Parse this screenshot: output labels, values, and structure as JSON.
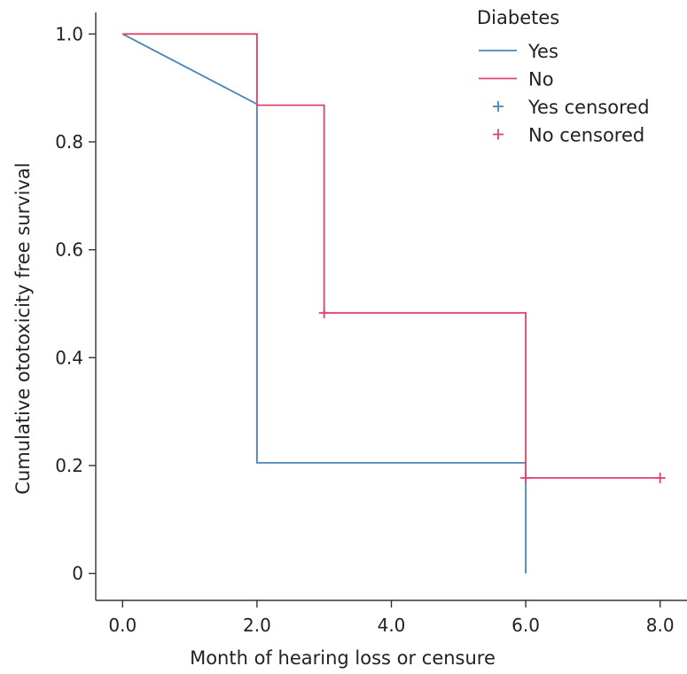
{
  "chart_data": {
    "type": "line",
    "subtype": "kaplan-meier-step",
    "xlabel": "Month of hearing loss or censure",
    "ylabel": "Cumulative ototoxicity free survival",
    "x_ticks": [
      0,
      2,
      4,
      6,
      8
    ],
    "x_tick_labels": [
      "0.0",
      "2.0",
      "4.0",
      "6.0",
      "8.0"
    ],
    "y_ticks": [
      0,
      0.2,
      0.4,
      0.6,
      0.8,
      1.0
    ],
    "y_tick_labels": [
      "0",
      "0.2",
      "0.4",
      "0.6",
      "0.8",
      "1.0"
    ],
    "xlim": [
      -0.4,
      8.4
    ],
    "ylim": [
      -0.05,
      1.04
    ],
    "grid": false,
    "legend": {
      "title": "Diabetes",
      "position": "top-right",
      "entries": [
        {
          "label": "Yes",
          "kind": "line",
          "series": "Yes"
        },
        {
          "label": "No",
          "kind": "line",
          "series": "No"
        },
        {
          "label": "Yes censored",
          "kind": "censor",
          "series": "Yes"
        },
        {
          "label": "No censored",
          "kind": "censor",
          "series": "No"
        }
      ]
    },
    "series": [
      {
        "name": "Yes",
        "color": "#4a86b9",
        "steps": [
          {
            "x": 0,
            "y": 1.0
          },
          {
            "x": 2,
            "y": 0.87
          },
          {
            "x": 2,
            "y": 0.205
          },
          {
            "x": 6,
            "y": 0.205
          },
          {
            "x": 6,
            "y": 0.0
          }
        ],
        "censored": []
      },
      {
        "name": "No",
        "color": "#e0436a",
        "steps": [
          {
            "x": 0,
            "y": 1.0
          },
          {
            "x": 2,
            "y": 1.0
          },
          {
            "x": 2,
            "y": 0.868
          },
          {
            "x": 3,
            "y": 0.868
          },
          {
            "x": 3,
            "y": 0.483
          },
          {
            "x": 6,
            "y": 0.483
          },
          {
            "x": 6,
            "y": 0.177
          },
          {
            "x": 8,
            "y": 0.177
          }
        ],
        "censored": [
          {
            "x": 3,
            "y": 0.483
          },
          {
            "x": 6,
            "y": 0.177
          },
          {
            "x": 8,
            "y": 0.177
          }
        ]
      }
    ]
  }
}
